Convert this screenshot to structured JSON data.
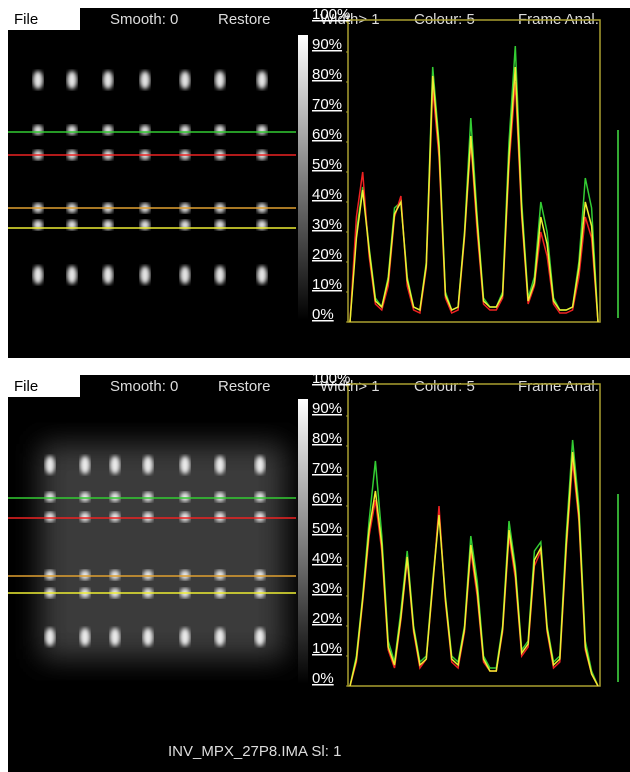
{
  "panels": [
    {
      "menu": [
        "File",
        "Smooth: 0",
        "Restore",
        "Width> 1",
        "Colour: 5",
        "Frame Anal."
      ],
      "chart": {
        "type": "line",
        "ylim": [
          0,
          100
        ],
        "yticks": [
          {
            "value": 0,
            "label": "0%"
          },
          {
            "value": 10,
            "label": "10%"
          },
          {
            "value": 20,
            "label": "20%"
          },
          {
            "value": 30,
            "label": "30%"
          },
          {
            "value": 40,
            "label": "40%"
          },
          {
            "value": 50,
            "label": "50%"
          },
          {
            "value": 60,
            "label": "60%"
          },
          {
            "value": 70,
            "label": "70%"
          },
          {
            "value": 80,
            "label": "80%"
          },
          {
            "value": 90,
            "label": "90%"
          },
          {
            "value": 100,
            "label": "100%"
          }
        ],
        "series": [
          {
            "color": "#33cc33",
            "values": [
              0,
              30,
              45,
              25,
              8,
              5,
              15,
              38,
              40,
              15,
              5,
              4,
              20,
              85,
              60,
              10,
              4,
              5,
              30,
              68,
              35,
              8,
              5,
              5,
              10,
              60,
              92,
              40,
              8,
              15,
              40,
              30,
              8,
              4,
              4,
              5,
              20,
              48,
              38,
              0
            ]
          },
          {
            "color": "#ee2222",
            "values": [
              0,
              35,
              50,
              22,
              6,
              4,
              12,
              35,
              42,
              12,
              4,
              3,
              18,
              78,
              55,
              8,
              3,
              4,
              28,
              60,
              30,
              6,
              4,
              4,
              8,
              52,
              80,
              35,
              6,
              12,
              30,
              22,
              6,
              3,
              3,
              4,
              15,
              35,
              28,
              0
            ]
          },
          {
            "color": "#eeee33",
            "values": [
              0,
              28,
              44,
              24,
              7,
              5,
              14,
              36,
              40,
              14,
              5,
              4,
              19,
              82,
              58,
              9,
              4,
              5,
              29,
              62,
              33,
              7,
              5,
              5,
              9,
              55,
              85,
              37,
              7,
              13,
              35,
              26,
              7,
              4,
              4,
              5,
              18,
              40,
              32,
              0
            ]
          }
        ]
      }
    },
    {
      "menu": [
        "File",
        "Smooth: 0",
        "Restore",
        "Width> 1",
        "Colour: 5",
        "Frame Anal."
      ],
      "chart": {
        "type": "line",
        "ylim": [
          0,
          100
        ],
        "yticks": [
          {
            "value": 0,
            "label": "0%"
          },
          {
            "value": 10,
            "label": "10%"
          },
          {
            "value": 20,
            "label": "20%"
          },
          {
            "value": 30,
            "label": "30%"
          },
          {
            "value": 40,
            "label": "40%"
          },
          {
            "value": 50,
            "label": "50%"
          },
          {
            "value": 60,
            "label": "60%"
          },
          {
            "value": 70,
            "label": "70%"
          },
          {
            "value": 80,
            "label": "80%"
          },
          {
            "value": 90,
            "label": "90%"
          },
          {
            "value": 100,
            "label": "100%"
          }
        ],
        "series": [
          {
            "color": "#33cc33",
            "values": [
              0,
              10,
              30,
              55,
              75,
              50,
              15,
              8,
              25,
              45,
              20,
              8,
              10,
              35,
              58,
              30,
              10,
              8,
              20,
              50,
              35,
              10,
              6,
              6,
              20,
              55,
              40,
              12,
              15,
              45,
              48,
              20,
              8,
              10,
              50,
              82,
              60,
              15,
              5,
              0
            ]
          },
          {
            "color": "#ee2222",
            "values": [
              0,
              8,
              28,
              50,
              62,
              45,
              12,
              6,
              22,
              42,
              18,
              6,
              9,
              33,
              60,
              28,
              8,
              6,
              18,
              45,
              30,
              8,
              5,
              5,
              18,
              50,
              36,
              10,
              13,
              40,
              45,
              18,
              6,
              8,
              45,
              75,
              55,
              12,
              4,
              0
            ]
          },
          {
            "color": "#eeee33",
            "values": [
              0,
              9,
              29,
              52,
              65,
              47,
              13,
              7,
              23,
              43,
              19,
              7,
              9,
              34,
              57,
              29,
              9,
              7,
              19,
              47,
              32,
              9,
              5,
              5,
              19,
              52,
              38,
              11,
              14,
              42,
              46,
              19,
              7,
              9,
              47,
              78,
              57,
              13,
              4,
              0
            ]
          }
        ]
      }
    }
  ],
  "status": "INV_MPX_27P8.IMA Sl: 1"
}
